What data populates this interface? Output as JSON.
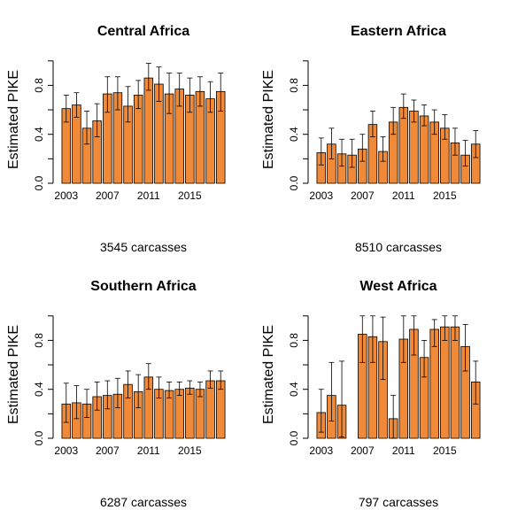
{
  "chart_data": [
    {
      "type": "bar",
      "title": "Central Africa",
      "ylabel": "Estimated PIKE",
      "xlabel": "3545 carcasses",
      "x": [
        2003,
        2004,
        2005,
        2006,
        2007,
        2008,
        2009,
        2010,
        2011,
        2012,
        2013,
        2014,
        2015,
        2016,
        2017,
        2018
      ],
      "values": [
        0.61,
        0.64,
        0.45,
        0.51,
        0.73,
        0.74,
        0.63,
        0.72,
        0.86,
        0.81,
        0.73,
        0.77,
        0.72,
        0.75,
        0.69,
        0.75
      ],
      "lower": [
        0.5,
        0.54,
        0.32,
        0.38,
        0.58,
        0.6,
        0.5,
        0.61,
        0.76,
        0.67,
        0.57,
        0.63,
        0.58,
        0.63,
        0.58,
        0.59
      ],
      "upper": [
        0.72,
        0.74,
        0.59,
        0.65,
        0.87,
        0.87,
        0.79,
        0.84,
        0.98,
        0.95,
        0.9,
        0.9,
        0.86,
        0.87,
        0.83,
        0.9
      ],
      "xticks": [
        "2003",
        "2007",
        "2011",
        "2015"
      ],
      "yticks": [
        "0.0",
        "0.4",
        "0.8"
      ],
      "ylim": [
        0,
        1
      ]
    },
    {
      "type": "bar",
      "title": "Eastern Africa",
      "ylabel": "Estimated PIKE",
      "xlabel": "8510 carcasses",
      "x": [
        2003,
        2004,
        2005,
        2006,
        2007,
        2008,
        2009,
        2010,
        2011,
        2012,
        2013,
        2014,
        2015,
        2016,
        2017,
        2018
      ],
      "values": [
        0.25,
        0.32,
        0.24,
        0.23,
        0.28,
        0.48,
        0.26,
        0.5,
        0.62,
        0.59,
        0.55,
        0.5,
        0.45,
        0.33,
        0.23,
        0.32
      ],
      "lower": [
        0.15,
        0.2,
        0.14,
        0.13,
        0.18,
        0.38,
        0.18,
        0.4,
        0.53,
        0.5,
        0.47,
        0.4,
        0.36,
        0.23,
        0.14,
        0.21
      ],
      "upper": [
        0.37,
        0.45,
        0.36,
        0.36,
        0.4,
        0.59,
        0.38,
        0.62,
        0.73,
        0.68,
        0.64,
        0.6,
        0.56,
        0.45,
        0.35,
        0.43
      ],
      "xticks": [
        "2003",
        "2007",
        "2011",
        "2015"
      ],
      "yticks": [
        "0.0",
        "0.4",
        "0.8"
      ],
      "ylim": [
        0,
        1
      ]
    },
    {
      "type": "bar",
      "title": "Southern Africa",
      "ylabel": "Estimated PIKE",
      "xlabel": "6287 carcasses",
      "x": [
        2003,
        2004,
        2005,
        2006,
        2007,
        2008,
        2009,
        2010,
        2011,
        2012,
        2013,
        2014,
        2015,
        2016,
        2017,
        2018
      ],
      "values": [
        0.28,
        0.29,
        0.28,
        0.34,
        0.35,
        0.36,
        0.44,
        0.38,
        0.5,
        0.4,
        0.39,
        0.4,
        0.41,
        0.4,
        0.47,
        0.47
      ],
      "lower": [
        0.13,
        0.16,
        0.17,
        0.23,
        0.24,
        0.25,
        0.33,
        0.25,
        0.4,
        0.33,
        0.33,
        0.35,
        0.36,
        0.34,
        0.41,
        0.4
      ],
      "upper": [
        0.45,
        0.43,
        0.4,
        0.46,
        0.47,
        0.49,
        0.55,
        0.52,
        0.61,
        0.5,
        0.46,
        0.46,
        0.47,
        0.46,
        0.55,
        0.55
      ],
      "xticks": [
        "2003",
        "2007",
        "2011",
        "2015"
      ],
      "yticks": [
        "0.0",
        "0.4",
        "0.8"
      ],
      "ylim": [
        0,
        1
      ]
    },
    {
      "type": "bar",
      "title": "West Africa",
      "ylabel": "Estimated PIKE",
      "xlabel": "797 carcasses",
      "x": [
        2003,
        2004,
        2005,
        2006,
        2007,
        2008,
        2009,
        2010,
        2011,
        2012,
        2013,
        2014,
        2015,
        2016,
        2017,
        2018
      ],
      "values": [
        0.21,
        0.35,
        0.27,
        0.0,
        0.85,
        0.83,
        0.79,
        0.16,
        0.81,
        0.89,
        0.66,
        0.89,
        0.91,
        0.91,
        0.75,
        0.46
      ],
      "lower": [
        0.05,
        0.14,
        0.01,
        0.0,
        0.62,
        0.62,
        0.48,
        0.0,
        0.62,
        0.68,
        0.5,
        0.75,
        0.8,
        0.8,
        0.55,
        0.28
      ],
      "upper": [
        0.4,
        0.62,
        0.63,
        0.0,
        1.0,
        1.0,
        0.99,
        0.35,
        1.0,
        1.0,
        0.8,
        0.97,
        1.0,
        1.0,
        0.93,
        0.63
      ],
      "xticks": [
        "2003",
        "2007",
        "2011",
        "2015"
      ],
      "yticks": [
        "0.0",
        "0.4",
        "0.8"
      ],
      "ylim": [
        0,
        1
      ]
    }
  ]
}
